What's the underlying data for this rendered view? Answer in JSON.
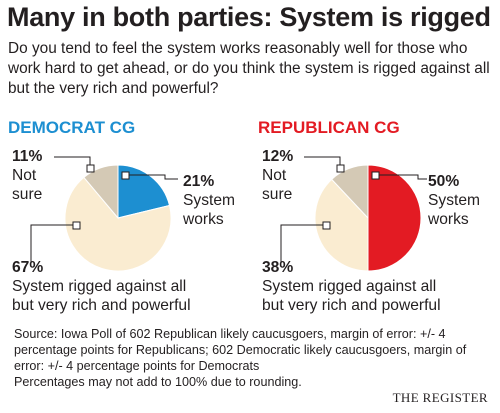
{
  "title": "Many in both parties: System is rigged",
  "question": "Do you tend to feel the system works reasonably well for those who work hard to get ahead, or do you think the system is rigged against all but the very rich and powerful?",
  "chart_data": [
    {
      "type": "pie",
      "title": "DEMOCRAT CG",
      "title_color": "#1d8fd1",
      "slices": [
        {
          "label": "System works",
          "value": 21,
          "display": "21%",
          "color": "#1d8fd1"
        },
        {
          "label": "System rigged against all but very rich and powerful",
          "value": 67,
          "display": "67%",
          "color": "#faecd1"
        },
        {
          "label": "Not sure",
          "value": 11,
          "display": "11%",
          "color": "#d4c9b5"
        }
      ]
    },
    {
      "type": "pie",
      "title": "REPUBLICAN CG",
      "title_color": "#e31b23",
      "slices": [
        {
          "label": "System works",
          "value": 50,
          "display": "50%",
          "color": "#e31b23"
        },
        {
          "label": "System rigged against all but very rich and powerful",
          "value": 38,
          "display": "38%",
          "color": "#faecd1"
        },
        {
          "label": "Not sure",
          "value": 12,
          "display": "12%",
          "color": "#d4c9b5"
        }
      ]
    }
  ],
  "labels": {
    "works_1": "System",
    "works_2": "works",
    "rigged_1": "System rigged against all",
    "rigged_2": "but very rich and powerful",
    "notsure_1": "Not",
    "notsure_2": "sure"
  },
  "source": "Source: Iowa Poll of 602 Republican likely caucusgoers, margin of error: +/- 4 percentage points for Republicans; 602 Democratic likely caucusgoers, margin of error: +/- 4 percentage points for Democrats",
  "footnote": "Percentages may not add to 100% due to rounding.",
  "brand": "THE REGISTER"
}
